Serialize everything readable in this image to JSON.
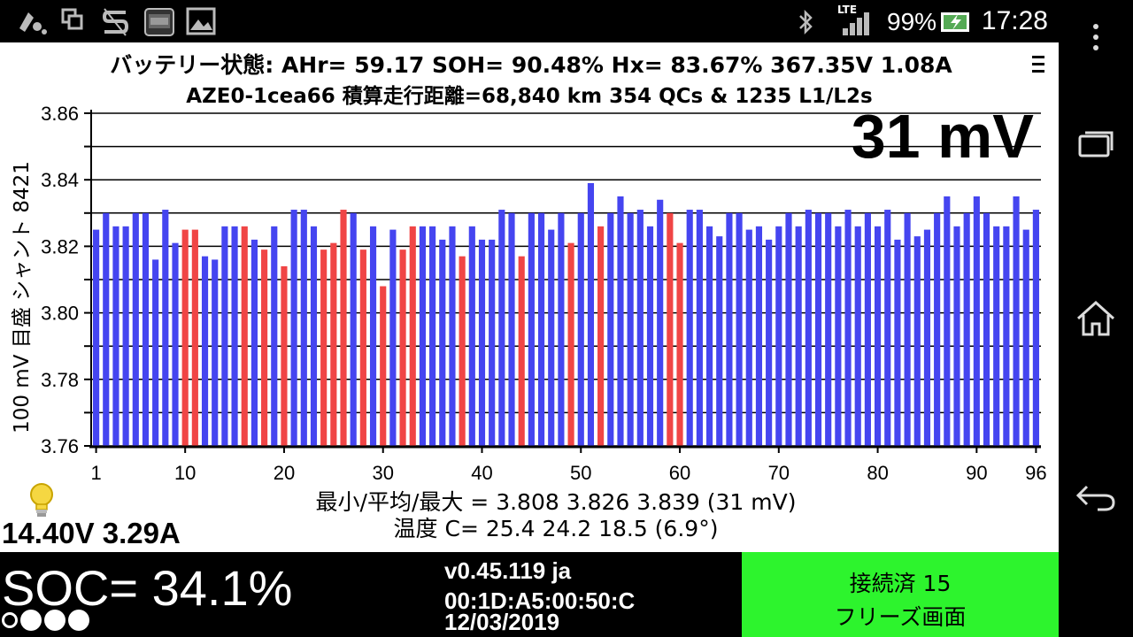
{
  "status_bar": {
    "network": "LTE",
    "battery_percent": "99%",
    "time": "17:28",
    "icons": [
      "notification-icon",
      "window-icon",
      "scrollbar-app-icon",
      "thumbnail-icon",
      "image-icon",
      "bluetooth-icon",
      "signal-icon",
      "battery-charging-icon"
    ]
  },
  "header": {
    "line1": "バッテリー状態:  AHr= 59.17  SOH= 90.48%   Hx= 83.67%   367.35V 1.08A",
    "line2": "AZE0-1cea66 積算走行距離=68,840 km  354 QCs & 1235 L1/L2s",
    "menu_icon": "overflow-menu-icon"
  },
  "chart_data": {
    "type": "bar",
    "title": "31 mV",
    "ylabel": "100 mV 目盛  シャント 8421",
    "ylim": [
      3.76,
      3.86
    ],
    "y_ticks": [
      "3.86",
      "3.84",
      "3.82",
      "3.80",
      "3.78",
      "3.76"
    ],
    "x_tick_labels": [
      "1",
      "10",
      "20",
      "30",
      "40",
      "50",
      "60",
      "70",
      "80",
      "90",
      "96"
    ],
    "x_tick_positions": [
      1,
      10,
      20,
      30,
      40,
      50,
      60,
      70,
      80,
      90,
      96
    ],
    "grid": true,
    "colors": {
      "normal": "#4545f0",
      "shunt": "#f04545"
    },
    "x": [
      1,
      2,
      3,
      4,
      5,
      6,
      7,
      8,
      9,
      10,
      11,
      12,
      13,
      14,
      15,
      16,
      17,
      18,
      19,
      20,
      21,
      22,
      23,
      24,
      25,
      26,
      27,
      28,
      29,
      30,
      31,
      32,
      33,
      34,
      35,
      36,
      37,
      38,
      39,
      40,
      41,
      42,
      43,
      44,
      45,
      46,
      47,
      48,
      49,
      50,
      51,
      52,
      53,
      54,
      55,
      56,
      57,
      58,
      59,
      60,
      61,
      62,
      63,
      64,
      65,
      66,
      67,
      68,
      69,
      70,
      71,
      72,
      73,
      74,
      75,
      76,
      77,
      78,
      79,
      80,
      81,
      82,
      83,
      84,
      85,
      86,
      87,
      88,
      89,
      90,
      91,
      92,
      93,
      94,
      95,
      96
    ],
    "values": [
      3.825,
      3.83,
      3.826,
      3.826,
      3.83,
      3.83,
      3.816,
      3.831,
      3.821,
      3.825,
      3.825,
      3.817,
      3.816,
      3.826,
      3.826,
      3.826,
      3.822,
      3.819,
      3.826,
      3.814,
      3.831,
      3.831,
      3.826,
      3.819,
      3.821,
      3.831,
      3.83,
      3.819,
      3.826,
      3.808,
      3.825,
      3.819,
      3.826,
      3.826,
      3.826,
      3.822,
      3.826,
      3.817,
      3.826,
      3.822,
      3.822,
      3.831,
      3.83,
      3.817,
      3.83,
      3.83,
      3.825,
      3.83,
      3.821,
      3.83,
      3.839,
      3.826,
      3.83,
      3.835,
      3.83,
      3.831,
      3.826,
      3.834,
      3.83,
      3.821,
      3.831,
      3.831,
      3.826,
      3.823,
      3.83,
      3.83,
      3.825,
      3.826,
      3.822,
      3.826,
      3.83,
      3.826,
      3.831,
      3.83,
      3.83,
      3.826,
      3.831,
      3.826,
      3.83,
      3.826,
      3.831,
      3.822,
      3.83,
      3.823,
      3.825,
      3.83,
      3.835,
      3.826,
      3.83,
      3.835,
      3.83,
      3.826,
      3.826,
      3.835,
      3.825,
      3.831
    ],
    "shunted": [
      10,
      11,
      16,
      18,
      20,
      24,
      25,
      26,
      28,
      30,
      32,
      33,
      38,
      44,
      49,
      52,
      59,
      60
    ]
  },
  "stats": {
    "minmax": "最小/平均/最大 = 3.808 3.826 3.839  (31 mV)",
    "temps": "温度 C= 25.4  24.2  18.5  (6.9°)"
  },
  "aux": {
    "bulb_icon": "lightbulb-icon",
    "voltage": "14.40V 3.29A"
  },
  "bottom": {
    "soc": "SOC= 34.1%",
    "soc_dots": {
      "filled": 3,
      "total": 4
    },
    "version": "v0.45.119 ja",
    "mac": "00:1D:A5:00:50:C",
    "date": "12/03/2019",
    "status_line1": "接続済 15",
    "status_line2": "フリーズ画面",
    "status_color": "#2df42d"
  },
  "nav": {
    "buttons": [
      "overflow-menu-icon",
      "recent-apps-icon",
      "home-icon",
      "back-icon"
    ]
  }
}
